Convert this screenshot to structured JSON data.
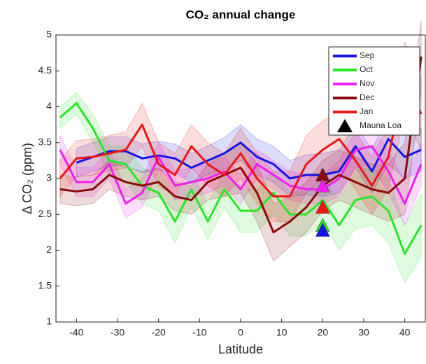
{
  "chart_data": {
    "type": "line",
    "title": "CO₂ annual change",
    "x_label": "Latitude",
    "y_label": "Δ CO₂ (ppm)",
    "x": [
      -44,
      -40,
      -36,
      -32,
      -28,
      -24,
      -20,
      -16,
      -12,
      -8,
      -4,
      0,
      4,
      8,
      12,
      16,
      20,
      24,
      28,
      32,
      36,
      40,
      44
    ],
    "series": [
      {
        "name": "Sep",
        "color": "#1414e6",
        "values": [
          null,
          3.22,
          3.3,
          3.38,
          3.38,
          3.28,
          3.32,
          3.28,
          3.15,
          3.25,
          3.35,
          3.5,
          3.3,
          3.2,
          3.0,
          3.05,
          3.05,
          3.1,
          3.45,
          3.1,
          3.55,
          3.3,
          3.4
        ],
        "error": [
          null,
          0.2,
          0.2,
          0.2,
          0.2,
          0.2,
          0.2,
          0.2,
          0.2,
          0.2,
          0.22,
          0.25,
          0.25,
          0.25,
          0.25,
          0.28,
          0.3,
          0.3,
          0.3,
          0.3,
          0.35,
          0.3,
          0.3
        ]
      },
      {
        "name": "Oct",
        "color": "#28e628",
        "values": [
          3.85,
          4.05,
          3.7,
          3.25,
          3.2,
          2.9,
          2.8,
          2.4,
          2.85,
          2.4,
          2.85,
          2.55,
          2.55,
          2.8,
          2.5,
          2.5,
          2.7,
          2.35,
          2.7,
          2.75,
          2.55,
          1.95,
          2.35
        ],
        "error": [
          0.15,
          0.15,
          0.2,
          0.2,
          0.25,
          0.25,
          0.25,
          0.3,
          0.25,
          0.25,
          0.25,
          0.3,
          0.3,
          0.3,
          0.3,
          0.3,
          0.3,
          0.35,
          0.4,
          0.4,
          0.45,
          0.4,
          0.45
        ]
      },
      {
        "name": "Nov",
        "color": "#f01ef0",
        "values": [
          3.4,
          2.95,
          2.95,
          3.2,
          2.65,
          2.8,
          3.3,
          2.9,
          2.95,
          3.0,
          3.1,
          2.85,
          3.2,
          3.05,
          2.9,
          2.85,
          2.85,
          3.0,
          3.4,
          3.45,
          3.1,
          2.65,
          3.2
        ],
        "error": [
          0.2,
          0.2,
          0.2,
          0.2,
          0.2,
          0.2,
          0.2,
          0.2,
          0.2,
          0.2,
          0.2,
          0.2,
          0.2,
          0.2,
          0.2,
          0.2,
          0.2,
          0.25,
          0.25,
          0.25,
          0.3,
          0.3,
          0.3
        ]
      },
      {
        "name": "Dec",
        "color": "#8c0a0a",
        "values": [
          2.85,
          2.82,
          2.85,
          3.05,
          2.95,
          2.9,
          2.95,
          2.75,
          2.7,
          2.95,
          3.05,
          3.15,
          2.8,
          2.25,
          2.4,
          2.6,
          2.9,
          3.05,
          2.95,
          2.85,
          2.8,
          3.0,
          4.7
        ],
        "error": [
          0.2,
          0.2,
          0.2,
          0.2,
          0.2,
          0.2,
          0.2,
          0.2,
          0.2,
          0.25,
          0.3,
          0.35,
          0.4,
          0.4,
          0.35,
          0.35,
          0.35,
          0.35,
          0.35,
          0.35,
          0.4,
          0.5,
          0.5
        ]
      },
      {
        "name": "Jan",
        "color": "#f01414",
        "values": [
          3.0,
          3.28,
          3.3,
          3.35,
          3.4,
          3.75,
          3.2,
          3.05,
          3.45,
          3.2,
          3.05,
          3.35,
          3.0,
          2.75,
          2.75,
          3.2,
          3.4,
          3.55,
          3.25,
          2.9,
          3.3,
          4.4,
          3.9
        ],
        "error": [
          0.25,
          0.25,
          0.25,
          0.25,
          0.25,
          0.3,
          0.3,
          0.3,
          0.3,
          0.3,
          0.3,
          0.35,
          0.35,
          0.35,
          0.35,
          0.4,
          0.4,
          0.4,
          0.4,
          0.4,
          0.45,
          0.5,
          0.5
        ]
      }
    ],
    "markers": {
      "name": "Mauna Loa",
      "legend_color": "#000000",
      "x": 20,
      "values": [
        3.05,
        2.9,
        2.6,
        2.35,
        2.28
      ],
      "colors": [
        "#8c0a0a",
        "#f01ef0",
        "#f01414",
        "#28e628",
        "#1414e6"
      ]
    },
    "xlim": [
      -45,
      45
    ],
    "xticks": [
      -40,
      -30,
      -20,
      -10,
      0,
      10,
      20,
      30,
      40
    ],
    "ylim": [
      1,
      5
    ],
    "yticks": [
      1,
      1.5,
      2,
      2.5,
      3,
      3.5,
      4,
      4.5,
      5
    ],
    "legend": "upper right"
  }
}
